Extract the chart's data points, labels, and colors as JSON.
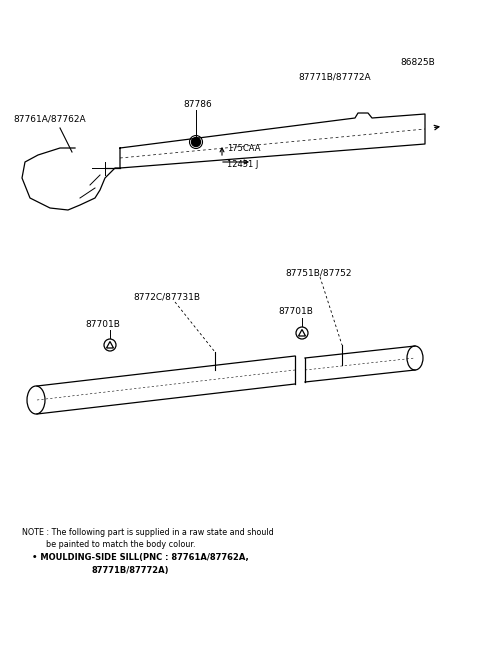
{
  "bg_color": "#ffffff",
  "fig_width": 4.8,
  "fig_height": 6.57,
  "dpi": 100,
  "part_number_top_right": "86825B",
  "label_top_moulding": "87771B/87772A",
  "label_clip_top": "87786",
  "label_left_top": "87761A/87762A",
  "label_dim1": "175CAA",
  "label_dim2": "12451 J",
  "label_bottom_left_group": "8772C/87731B",
  "label_bottom_left_clip": "87701B",
  "label_bottom_right_group": "87751B/87752",
  "label_bottom_right_clip": "87701B",
  "note_line1": "NOTE : The following part is supplied in a raw state and should",
  "note_line2": "          be painted to match the body colour.",
  "note_line3": "        • MOULDING-SIDE SILL(PNC : 87761A/87762A,",
  "note_line4": "                                87771B/87772A)"
}
